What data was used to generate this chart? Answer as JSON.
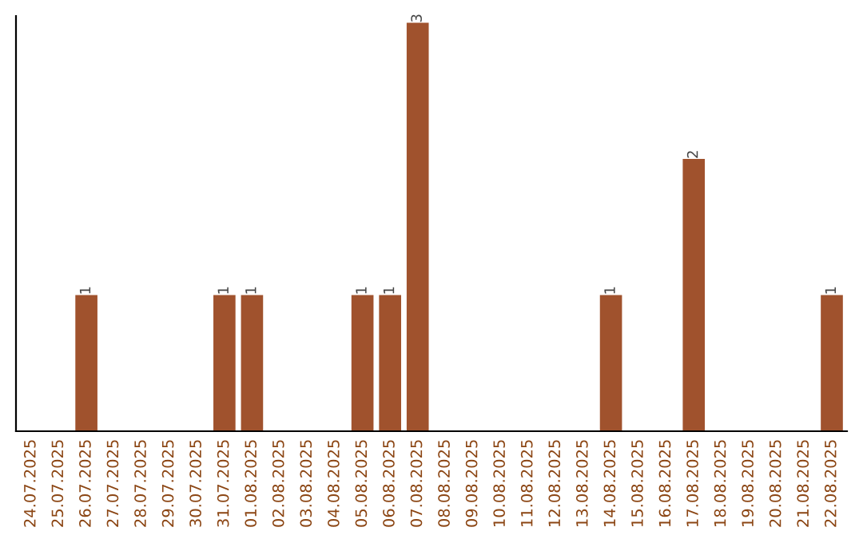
{
  "chart_data": {
    "type": "bar",
    "categories": [
      "24.07.2025",
      "25.07.2025",
      "26.07.2025",
      "27.07.2025",
      "28.07.2025",
      "29.07.2025",
      "30.07.2025",
      "31.07.2025",
      "01.08.2025",
      "02.08.2025",
      "03.08.2025",
      "04.08.2025",
      "05.08.2025",
      "06.08.2025",
      "07.08.2025",
      "08.08.2025",
      "09.08.2025",
      "10.08.2025",
      "11.08.2025",
      "12.08.2025",
      "13.08.2025",
      "14.08.2025",
      "15.08.2025",
      "16.08.2025",
      "17.08.2025",
      "18.08.2025",
      "19.08.2025",
      "20.08.2025",
      "21.08.2025",
      "22.08.2025"
    ],
    "values": [
      0,
      0,
      1,
      0,
      0,
      0,
      0,
      1,
      1,
      0,
      0,
      0,
      1,
      1,
      3,
      0,
      0,
      0,
      0,
      0,
      0,
      1,
      0,
      0,
      2,
      0,
      0,
      0,
      0,
      1
    ],
    "value_labels": [
      null,
      null,
      "1",
      null,
      null,
      null,
      null,
      "1",
      "1",
      null,
      null,
      null,
      "1",
      "1",
      "3",
      null,
      null,
      null,
      null,
      null,
      null,
      "1",
      null,
      null,
      "2",
      null,
      null,
      null,
      null,
      "1"
    ],
    "color": "#a0522d",
    "ylim": [
      0,
      3.05
    ],
    "tick_labels": "x",
    "grid": false,
    "legend": false
  }
}
